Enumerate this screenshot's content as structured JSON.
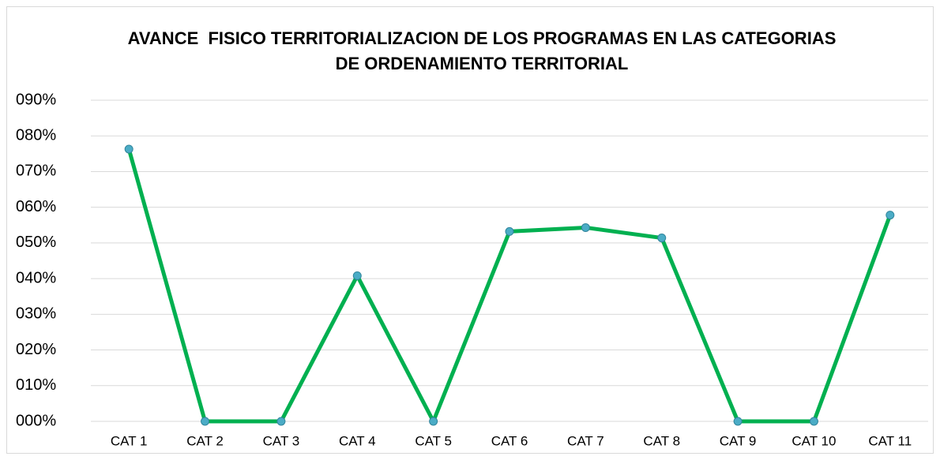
{
  "chart_data": {
    "type": "line",
    "title": "AVANCE  FISICO TERRITORIALIZACION DE LOS PROGRAMAS EN LAS CATEGORIAS DE ORDENAMIENTO TERRITORIAL",
    "categories": [
      "CAT 1",
      "CAT 2",
      "CAT 3",
      "CAT 4",
      "CAT 5",
      "CAT 6",
      "CAT 7",
      "CAT 8",
      "CAT 9",
      "CAT 10",
      "CAT 11"
    ],
    "values": [
      76.3,
      0,
      0,
      40.8,
      0,
      53.2,
      54.3,
      51.4,
      0,
      0,
      57.8
    ],
    "color": "#00b050",
    "marker_color": "#4bacc6",
    "ylim": [
      0,
      90
    ],
    "yticks": [
      {
        "value": 0,
        "label": "000%"
      },
      {
        "value": 10,
        "label": "010%"
      },
      {
        "value": 20,
        "label": "020%"
      },
      {
        "value": 30,
        "label": "030%"
      },
      {
        "value": 40,
        "label": "040%"
      },
      {
        "value": 50,
        "label": "050%"
      },
      {
        "value": 60,
        "label": "060%"
      },
      {
        "value": 70,
        "label": "070%"
      },
      {
        "value": 80,
        "label": "080%"
      },
      {
        "value": 90,
        "label": "090%"
      }
    ],
    "grid": true
  }
}
